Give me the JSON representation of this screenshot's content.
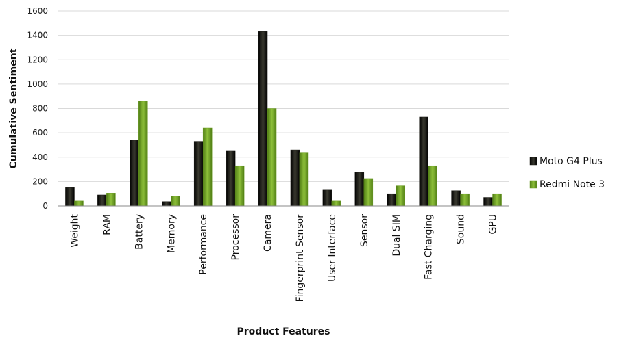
{
  "chart_data": {
    "type": "bar",
    "xlabel": "Product Features",
    "ylabel": "Cumulative Sentiment",
    "ylim": [
      0,
      1600
    ],
    "yticks": [
      0,
      200,
      400,
      600,
      800,
      1000,
      1200,
      1400,
      1600
    ],
    "grid": true,
    "legend_position": "right",
    "categories": [
      "Weight",
      "RAM",
      "Battery",
      "Memory",
      "Performance",
      "Processor",
      "Camera",
      "Fingerprint Sensor",
      "User Interface",
      "Sensor",
      "Dual SIM",
      "Fast Charging",
      "Sound",
      "GPU"
    ],
    "series": [
      {
        "name": "Moto G4 Plus",
        "color": "#1a1a14",
        "values": [
          150,
          90,
          540,
          35,
          530,
          455,
          1430,
          460,
          130,
          275,
          100,
          730,
          125,
          70
        ]
      },
      {
        "name": "Redmi Note 3",
        "color": "#6a9a22",
        "values": [
          40,
          105,
          860,
          80,
          640,
          330,
          800,
          440,
          40,
          225,
          165,
          330,
          100,
          100
        ]
      }
    ]
  }
}
